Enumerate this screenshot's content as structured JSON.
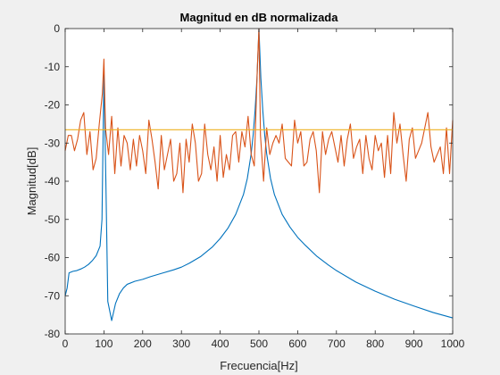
{
  "chart_data": {
    "type": "line",
    "title": "Magnitud en dB normalizada",
    "xlabel": "Frecuencia[Hz]",
    "ylabel": "Magnitud[dB]",
    "xlim": [
      0,
      1000
    ],
    "ylim": [
      -80,
      0
    ],
    "xticks": [
      0,
      100,
      200,
      300,
      400,
      500,
      600,
      700,
      800,
      900,
      1000
    ],
    "yticks": [
      0,
      -10,
      -20,
      -30,
      -40,
      -50,
      -60,
      -70,
      -80
    ],
    "grid": false,
    "legend": "none",
    "series": [
      {
        "color": "#0072BD",
        "x": [
          0,
          5,
          10,
          20,
          30,
          40,
          50,
          60,
          70,
          80,
          90,
          95,
          100,
          105,
          110,
          120,
          130,
          140,
          150,
          160,
          180,
          200,
          220,
          250,
          280,
          300,
          320,
          350,
          380,
          400,
          420,
          440,
          460,
          470,
          480,
          485,
          490,
          495,
          500,
          505,
          510,
          515,
          520,
          530,
          540,
          560,
          580,
          600,
          620,
          650,
          680,
          700,
          750,
          800,
          850,
          900,
          950,
          1000
        ],
        "y": [
          -70,
          -68,
          -64,
          -63.6,
          -63.4,
          -63,
          -62.5,
          -61.8,
          -60.8,
          -59.5,
          -57,
          -50,
          -12,
          -40,
          -71.5,
          -76.5,
          -72,
          -69.5,
          -68,
          -67,
          -66.2,
          -65.7,
          -65,
          -64.1,
          -63.2,
          -62.5,
          -61.5,
          -59.7,
          -57.2,
          -55,
          -52.3,
          -48.7,
          -43.5,
          -39.3,
          -32.8,
          -28,
          -21.5,
          -13,
          0,
          -13,
          -21.5,
          -28,
          -32.8,
          -39.3,
          -43.5,
          -48.7,
          -52,
          -54.7,
          -56.8,
          -59.7,
          -62,
          -63.4,
          -66.4,
          -68.8,
          -70.9,
          -72.7,
          -74.4,
          -75.8
        ]
      },
      {
        "color": "#D95319",
        "x": [
          0,
          8,
          16,
          24,
          32,
          40,
          48,
          56,
          64,
          72,
          80,
          88,
          96,
          100,
          104,
          112,
          120,
          128,
          136,
          144,
          152,
          160,
          168,
          176,
          184,
          192,
          200,
          208,
          216,
          224,
          232,
          240,
          248,
          256,
          264,
          272,
          280,
          288,
          296,
          304,
          312,
          320,
          328,
          336,
          344,
          352,
          360,
          368,
          376,
          384,
          392,
          400,
          408,
          416,
          424,
          432,
          440,
          448,
          456,
          464,
          472,
          480,
          488,
          496,
          500,
          504,
          512,
          520,
          528,
          536,
          544,
          552,
          560,
          568,
          576,
          584,
          592,
          600,
          608,
          616,
          624,
          632,
          640,
          648,
          656,
          664,
          672,
          680,
          688,
          696,
          704,
          712,
          720,
          728,
          736,
          744,
          752,
          760,
          768,
          776,
          784,
          792,
          800,
          808,
          816,
          824,
          832,
          840,
          848,
          856,
          864,
          872,
          880,
          888,
          896,
          904,
          912,
          920,
          928,
          936,
          944,
          952,
          960,
          968,
          976,
          984,
          992,
          1000
        ],
        "y": [
          -32,
          -28,
          -28,
          -32,
          -29,
          -24,
          -22,
          -33,
          -27,
          -37,
          -34,
          -25,
          -17,
          -8,
          -26,
          -33,
          -23,
          -38,
          -26,
          -36,
          -28,
          -30,
          -37,
          -29,
          -36,
          -28,
          -32,
          -38,
          -24,
          -29,
          -35,
          -42,
          -28,
          -37,
          -33,
          -29,
          -40,
          -38,
          -30,
          -43,
          -29,
          -35,
          -25,
          -30,
          -40,
          -38,
          -25,
          -33,
          -37,
          -31,
          -40,
          -28,
          -39,
          -33,
          -37,
          -28,
          -27,
          -35,
          -27,
          -31,
          -23,
          -33,
          -36,
          -10,
          0,
          -28,
          -40,
          -26,
          -33,
          -30,
          -28,
          -30,
          -25,
          -34,
          -35,
          -36,
          -24,
          -30,
          -27,
          -36,
          -35,
          -29,
          -27,
          -32,
          -43,
          -27,
          -33,
          -29,
          -27,
          -31,
          -35,
          -28,
          -36,
          -29,
          -25,
          -34,
          -31,
          -29,
          -38,
          -28,
          -34,
          -37,
          -28,
          -32,
          -30,
          -39,
          -28,
          -38,
          -22,
          -30,
          -25,
          -33,
          -40,
          -29,
          -26,
          -34,
          -32,
          -30,
          -26,
          -22,
          -31,
          -35,
          -33,
          -31,
          -38,
          -26,
          -38,
          -24
        ]
      },
      {
        "color": "#EDB120",
        "x": [
          0,
          1000
        ],
        "y": [
          -26.5,
          -26.5
        ]
      }
    ]
  }
}
